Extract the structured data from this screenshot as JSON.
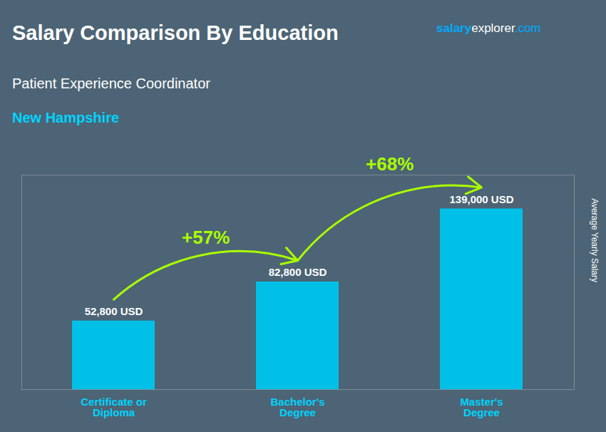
{
  "chart_data": {
    "type": "bar",
    "title": "Salary Comparison By Education",
    "subtitle": [
      "Patient Experience Coordinator",
      "New Hampshire"
    ],
    "brand": [
      "salary",
      "explorer",
      ".com"
    ],
    "ylabel": "Average Yearly Salary",
    "categories": [
      "Certificate or\nDiploma",
      "Bachelor's\nDegree",
      "Master's\nDegree"
    ],
    "values": [
      52800,
      82800,
      139000
    ],
    "value_labels": [
      "52,800 USD",
      "82,800 USD",
      "139,000 USD"
    ],
    "data_labels": true,
    "annotations": [
      "+57%",
      "+68%"
    ],
    "color": "#00c0e8",
    "ylim": [
      0,
      165000
    ],
    "yticks": [],
    "tick_labels": "x",
    "grid": false
  }
}
